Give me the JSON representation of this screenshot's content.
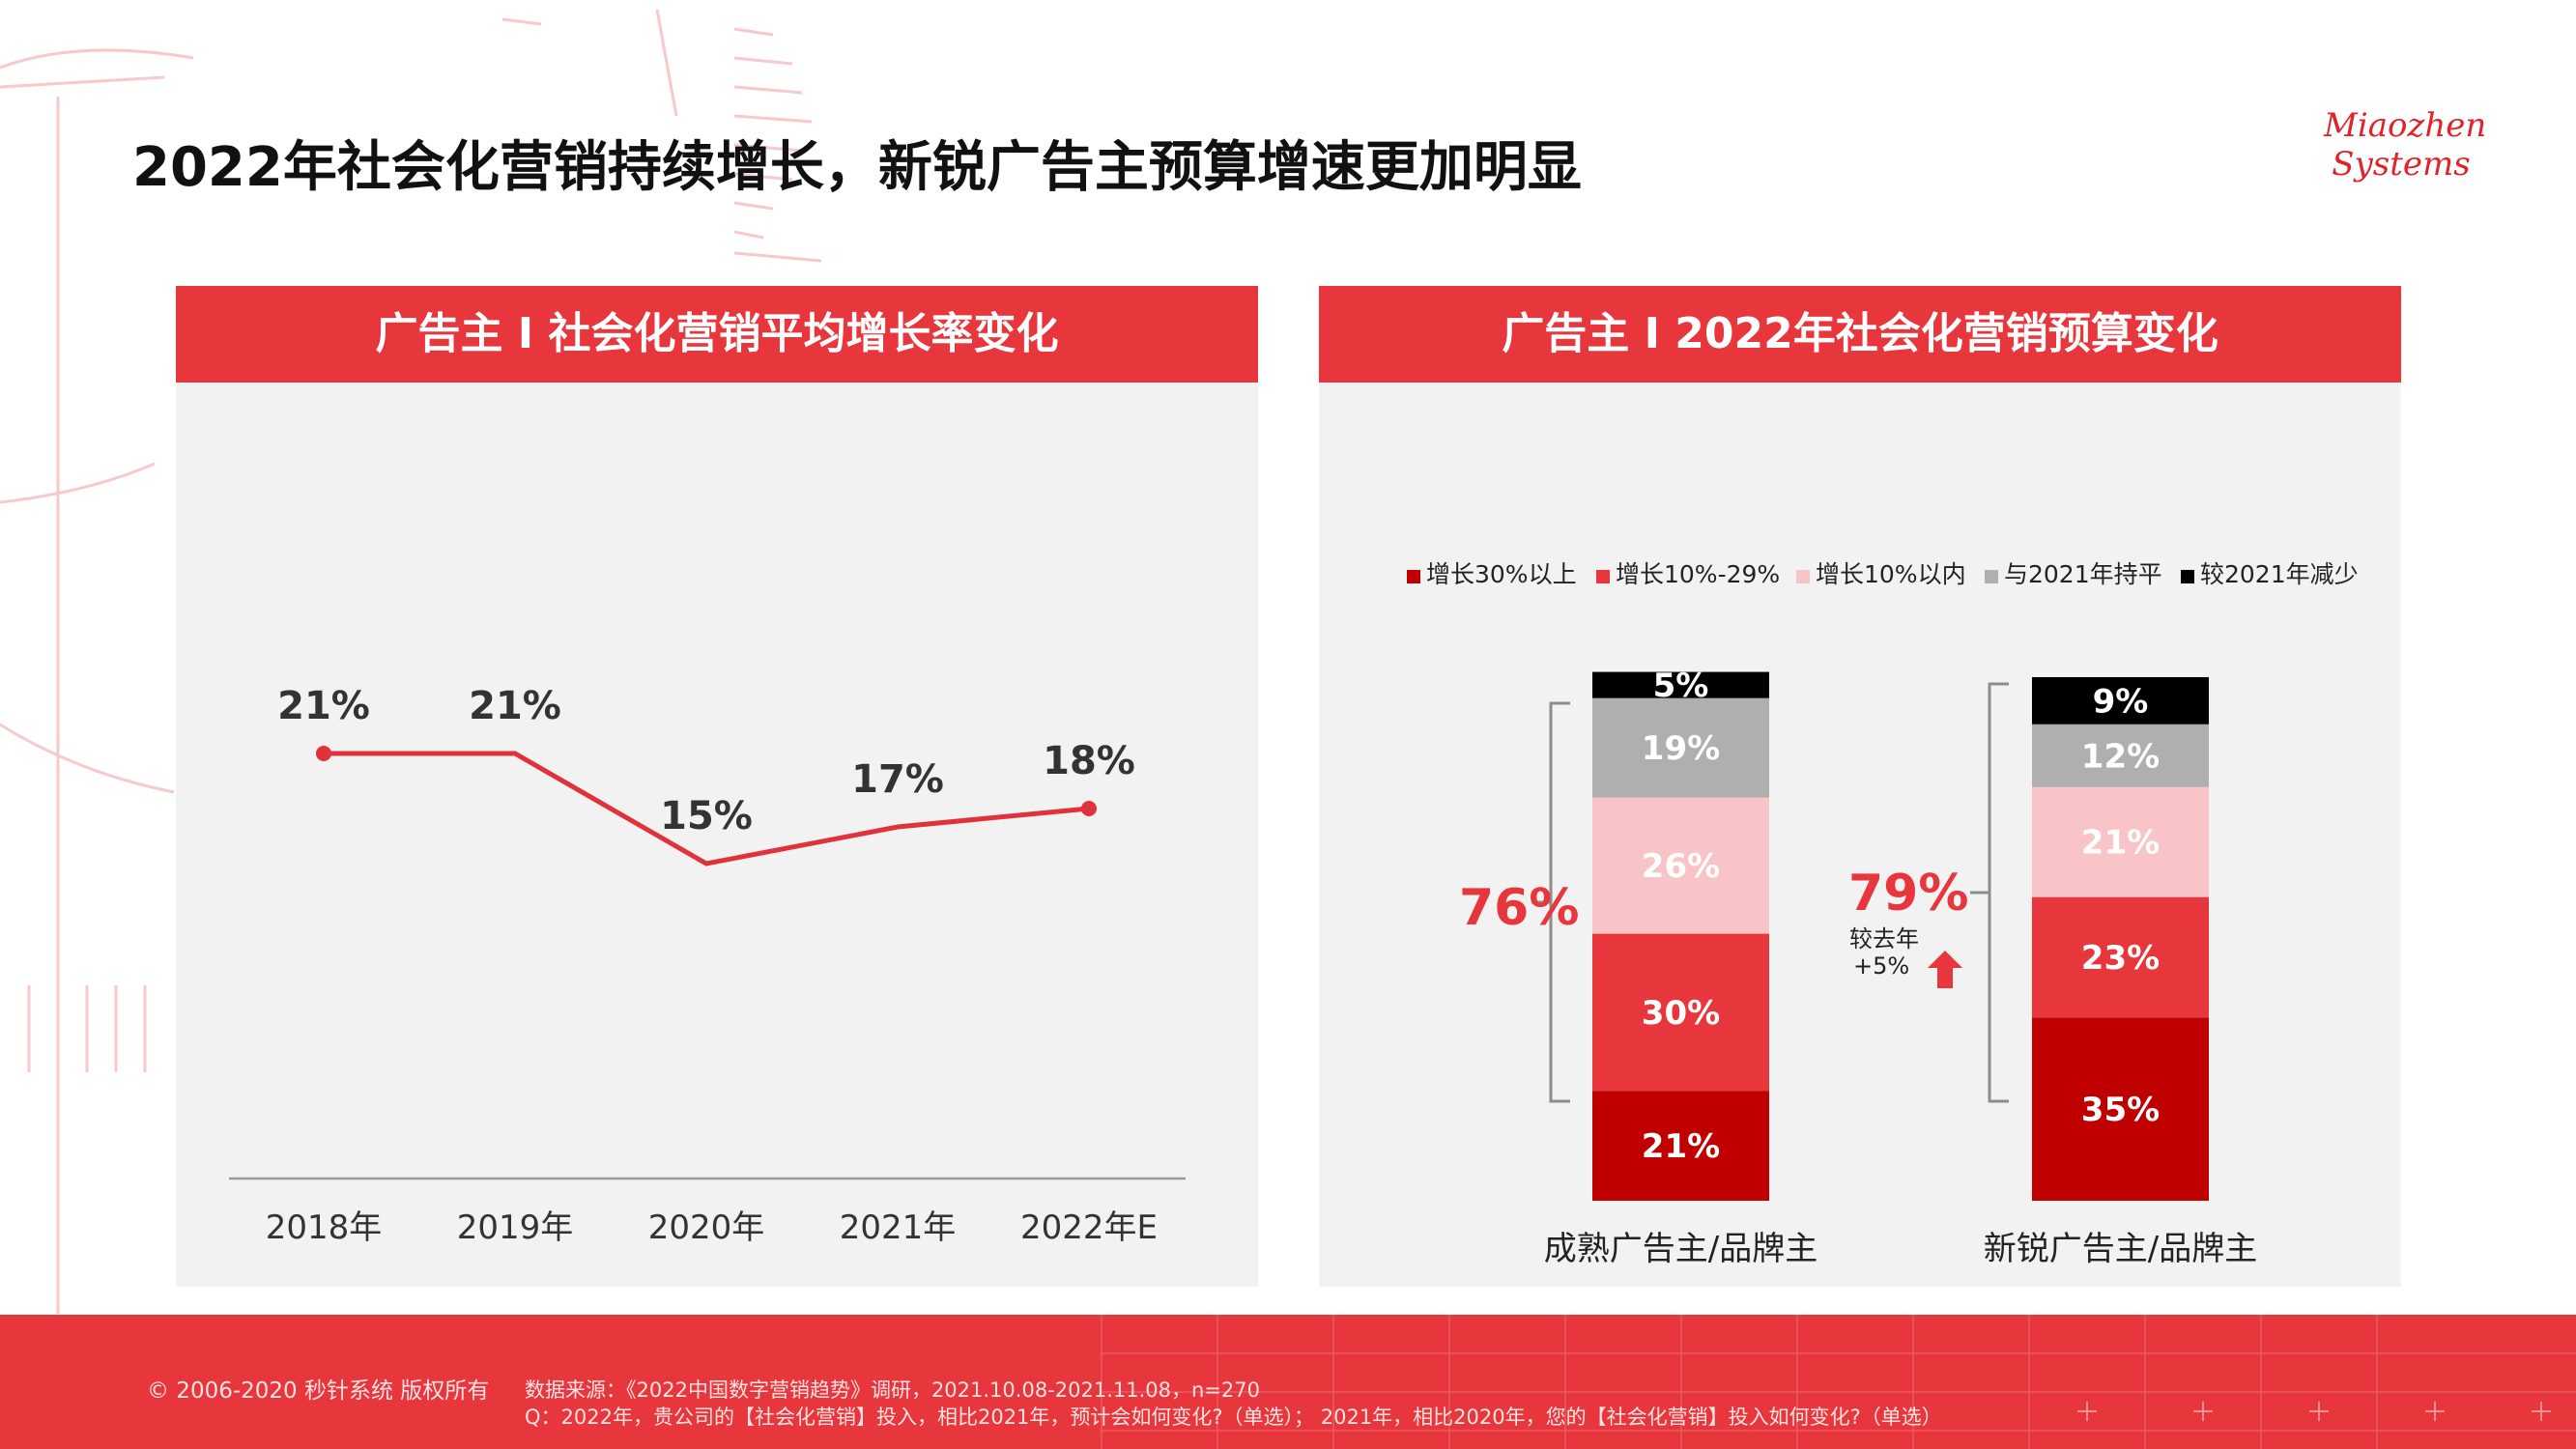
{
  "title": "2022年社会化营销持续增长，新锐广告主预算增速更加明显",
  "logo": {
    "line1": "Miaozhen",
    "line2": "Systems"
  },
  "colors": {
    "brand_red": "#e8363d",
    "line_red": "#e0323a",
    "panel_bg": "#f2f2f2"
  },
  "left_panel": {
    "header": "广告主 I 社会化营销平均增长率变化"
  },
  "right_panel": {
    "header": "广告主 I 2022年社会化营销预算变化",
    "mature_total": "76%",
    "new_total": "79%",
    "new_note_1": "较去年",
    "new_note_2": "+5%"
  },
  "footer": {
    "copyright": "© 2006-2020 秒针系统 版权所有",
    "source": "数据来源：《2022中国数字营销趋势》调研，2021.10.08-2021.11.08，n=270",
    "question": "Q：2022年，贵公司的【社会化营销】投入，相比2021年，预计会如何变化?（单选）；    2021年，相比2020年，您的【社会化营销】投入如何变化?（单选）"
  },
  "chart_data": [
    {
      "type": "line",
      "categories": [
        "2018年",
        "2019年",
        "2020年",
        "2021年",
        "2022年E"
      ],
      "values": [
        21,
        21,
        15,
        17,
        18
      ],
      "labels": [
        "21%",
        "21%",
        "15%",
        "17%",
        "18%"
      ],
      "ylim": [
        0,
        25
      ],
      "grid": false
    },
    {
      "type": "bar",
      "stacked": true,
      "categories": [
        "成熟广告主/品牌主",
        "新锐广告主/品牌主"
      ],
      "legend_position": "top",
      "series": [
        {
          "name": "增长30%以上",
          "color": "#c00000",
          "text_color": "#ffffff",
          "values": [
            21,
            35
          ]
        },
        {
          "name": "增长10%-29%",
          "color": "#e8363d",
          "text_color": "#ffffff",
          "values": [
            30,
            23
          ]
        },
        {
          "name": "增长10%以内",
          "color": "#f9c4c7",
          "text_color": "#ffffff",
          "values": [
            26,
            21
          ]
        },
        {
          "name": "与2021年持平",
          "color": "#afafaf",
          "text_color": "#ffffff",
          "values": [
            19,
            12
          ]
        },
        {
          "name": "较2021年减少",
          "color": "#000000",
          "text_color": "#ffffff",
          "values": [
            5,
            9
          ]
        }
      ]
    }
  ]
}
